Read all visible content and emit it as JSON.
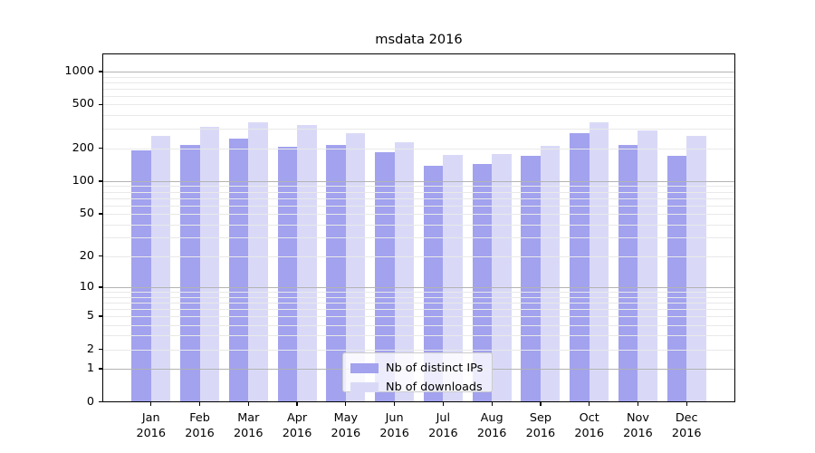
{
  "title": "msdata 2016",
  "chart_data": {
    "type": "bar",
    "categories": [
      "Jan",
      "Feb",
      "Mar",
      "Apr",
      "May",
      "Jun",
      "Jul",
      "Aug",
      "Sep",
      "Oct",
      "Nov",
      "Dec"
    ],
    "x_year": "2016",
    "series": [
      {
        "name": "Nb of distinct IPs",
        "color": "#a2a2ef",
        "values": [
          190,
          214,
          244,
          207,
          213,
          185,
          139,
          144,
          170,
          275,
          216,
          171
        ]
      },
      {
        "name": "Nb of downloads",
        "color": "#d9d9f7",
        "values": [
          260,
          314,
          346,
          328,
          273,
          228,
          175,
          178,
          212,
          344,
          292,
          257
        ]
      }
    ],
    "yscale": "log10(value+1)",
    "yticks": [
      0,
      1,
      2,
      5,
      10,
      20,
      50,
      100,
      200,
      500,
      1000
    ],
    "major_grid_values": [
      1,
      10,
      100,
      1000
    ],
    "ylim": [
      0,
      1480
    ],
    "grid": "both",
    "legend_position": "lower-center",
    "colors": {
      "grid_minor": "#e9e9e9",
      "grid_major": "#b3b3b3",
      "spine": "#000000"
    }
  }
}
